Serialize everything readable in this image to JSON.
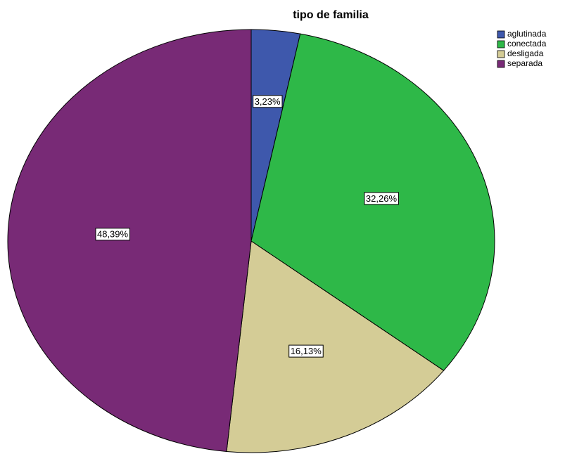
{
  "chart_data": {
    "type": "pie",
    "title": "tipo de familia",
    "categories": [
      "aglutinada",
      "conectada",
      "desligada",
      "separada"
    ],
    "values": [
      3.23,
      32.26,
      16.13,
      48.39
    ],
    "value_labels": [
      "3,23%",
      "32,26%",
      "16,13%",
      "48,39%"
    ],
    "colors": [
      "#3e58ac",
      "#2eb848",
      "#d4cc96",
      "#782a76"
    ],
    "legend": "top-right"
  }
}
